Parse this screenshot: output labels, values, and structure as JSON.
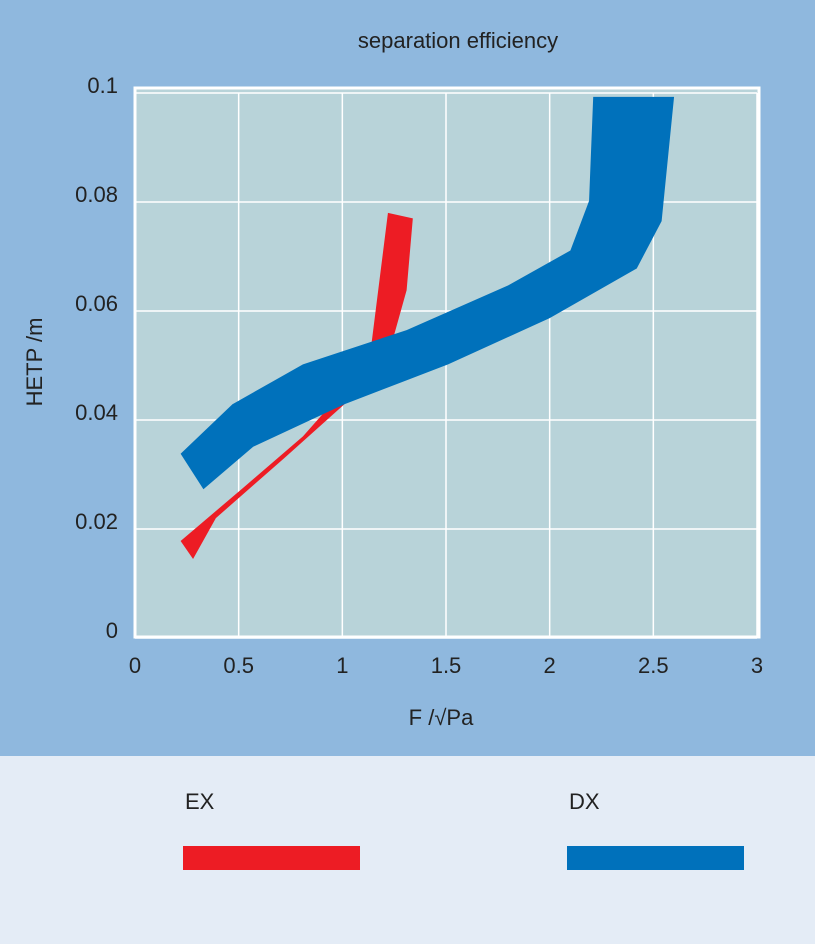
{
  "chart_data": {
    "type": "band",
    "title": "separation efficiency",
    "x_label": "F /√Pa",
    "y_label": "HETP /m",
    "xlim": [
      0,
      3
    ],
    "ylim": [
      0,
      0.1
    ],
    "xticks": [
      0,
      0.5,
      1,
      1.5,
      2,
      2.5,
      3
    ],
    "yticks": [
      0,
      0.02,
      0.04,
      0.06,
      0.08,
      0.1
    ],
    "grid": true,
    "legend": "bottom",
    "series": [
      {
        "name": "EX",
        "color": "#ed1c24",
        "upper_x": [
          0.22,
          0.52,
          0.81,
          1.01,
          1.14,
          1.22
        ],
        "upper_y": [
          0.0178,
          0.0275,
          0.037,
          0.0456,
          0.0538,
          0.078
        ],
        "lower_x": [
          0.28,
          0.39,
          0.72,
          1.01,
          1.21,
          1.31,
          1.34
        ],
        "lower_y": [
          0.0145,
          0.022,
          0.033,
          0.0429,
          0.0502,
          0.0638,
          0.077
        ]
      },
      {
        "name": "DX",
        "color": "#0071bb",
        "upper_x": [
          0.22,
          0.47,
          0.81,
          1.31,
          1.8,
          2.1,
          2.19,
          2.21
        ],
        "upper_y": [
          0.0338,
          0.0429,
          0.0502,
          0.0565,
          0.0647,
          0.0711,
          0.0802,
          0.0993
        ],
        "lower_x": [
          0.33,
          0.57,
          1.01,
          1.51,
          2.0,
          2.42,
          2.54,
          2.6
        ],
        "lower_y": [
          0.0273,
          0.0351,
          0.0429,
          0.0502,
          0.0587,
          0.0678,
          0.0765,
          0.0993
        ]
      }
    ]
  }
}
